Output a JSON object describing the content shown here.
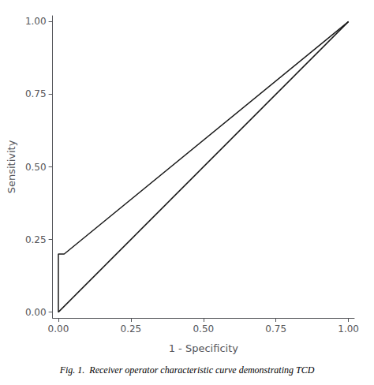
{
  "chart_data": {
    "type": "line",
    "caption": "Fig. 1.  Receiver operator characteristic curve demonstrating TCD",
    "xlabel": "1 - Specificity",
    "ylabel": "Sensitivity",
    "series": [
      {
        "x": [
          0.0,
          1.0
        ],
        "values": [
          0.0,
          1.0
        ],
        "color": "#1a1a1a"
      },
      {
        "x": [
          0.0,
          0.0,
          0.02,
          1.0
        ],
        "values": [
          0.0,
          0.2,
          0.2,
          1.0
        ],
        "color": "#1a1a1a"
      }
    ],
    "xlim": [
      -0.02,
      1.02
    ],
    "ylim": [
      -0.02,
      1.02
    ],
    "xticks": [
      {
        "value": 0.0,
        "label": "0.00"
      },
      {
        "value": 0.25,
        "label": "0.25"
      },
      {
        "value": 0.5,
        "label": "0.50"
      },
      {
        "value": 0.75,
        "label": "0.75"
      },
      {
        "value": 1.0,
        "label": "1.00"
      }
    ],
    "yticks": [
      {
        "value": 0.0,
        "label": "0.00"
      },
      {
        "value": 0.25,
        "label": "0.25"
      },
      {
        "value": 0.5,
        "label": "0.50"
      },
      {
        "value": 0.75,
        "label": "0.75"
      },
      {
        "value": 1.0,
        "label": "1.00"
      }
    ],
    "grid": false
  }
}
